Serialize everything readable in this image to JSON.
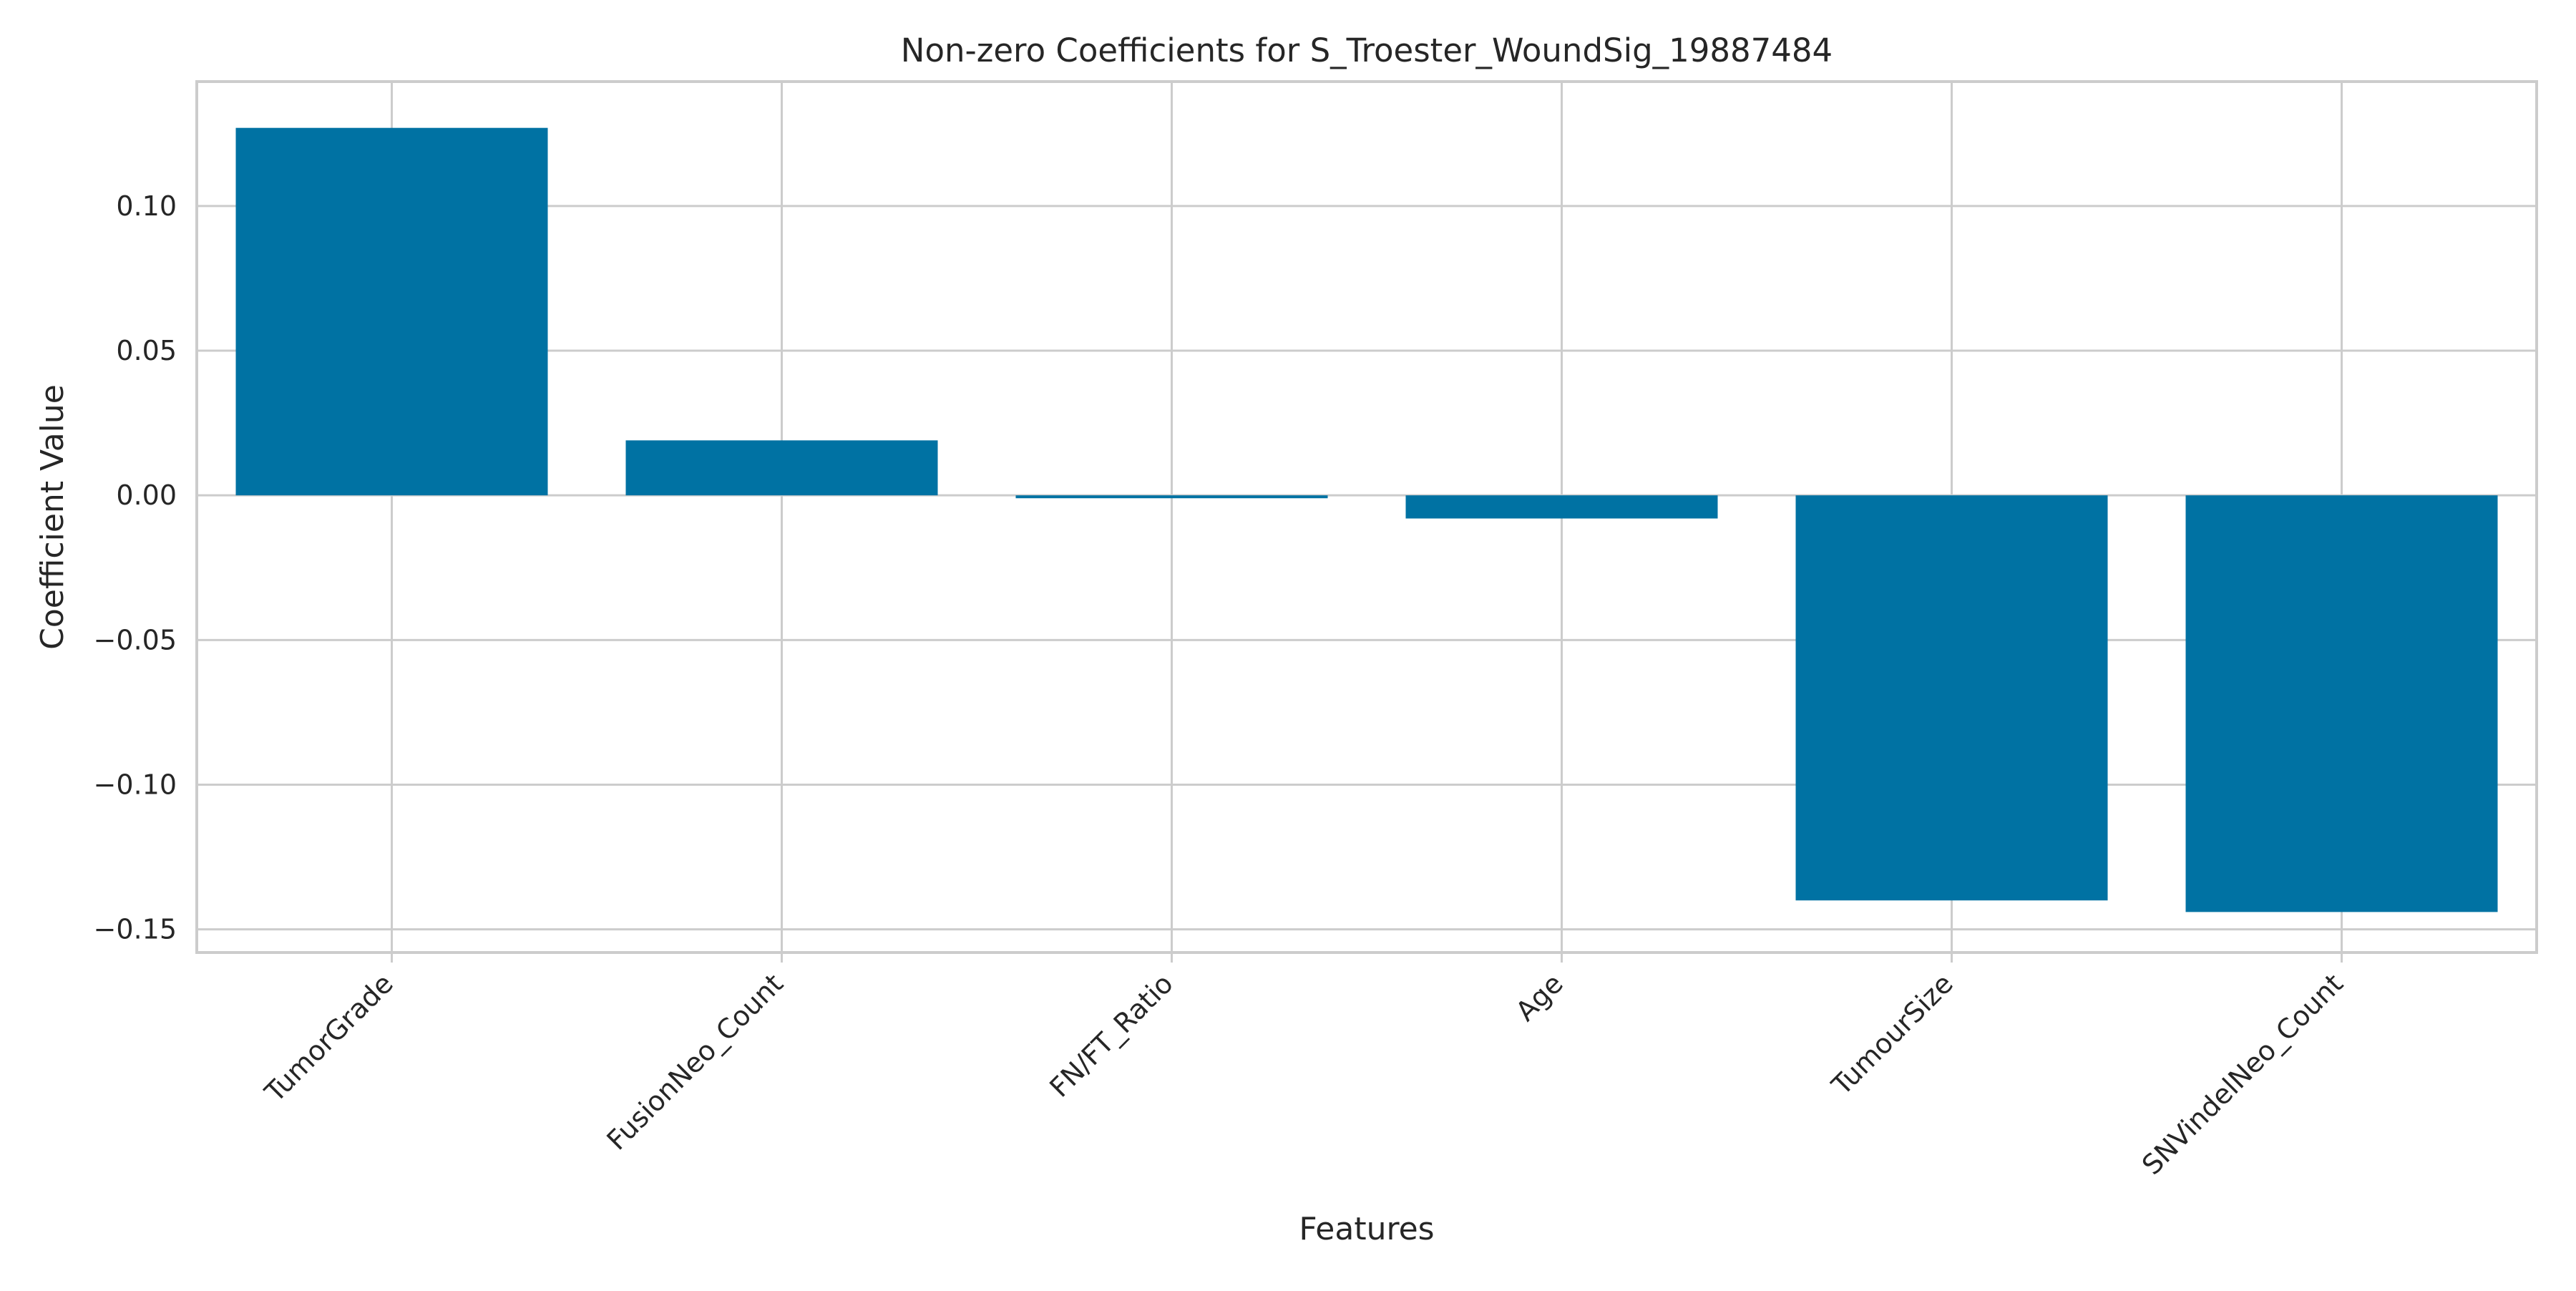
{
  "chart_data": {
    "type": "bar",
    "title": "Non-zero Coefficients for S_Troester_WoundSig_19887484",
    "xlabel": "Features",
    "ylabel": "Coefficient Value",
    "categories": [
      "TumorGrade",
      "FusionNeo_Count",
      "FN/FT_Ratio",
      "Age",
      "TumourSize",
      "SNVindelNeo_Count"
    ],
    "values": [
      0.127,
      0.019,
      -0.001,
      -0.008,
      -0.14,
      -0.144
    ],
    "ylim": [
      -0.158,
      0.143
    ],
    "yticks": [
      0.1,
      0.05,
      0.0,
      -0.05,
      -0.1,
      -0.15
    ],
    "ytick_labels": [
      "0.10",
      "0.05",
      "0.00",
      "−0.05",
      "−0.10",
      "−0.15"
    ],
    "grid": true,
    "colors": {
      "bar": "#0072a3",
      "grid": "#cccccc",
      "text": "#262626"
    }
  }
}
